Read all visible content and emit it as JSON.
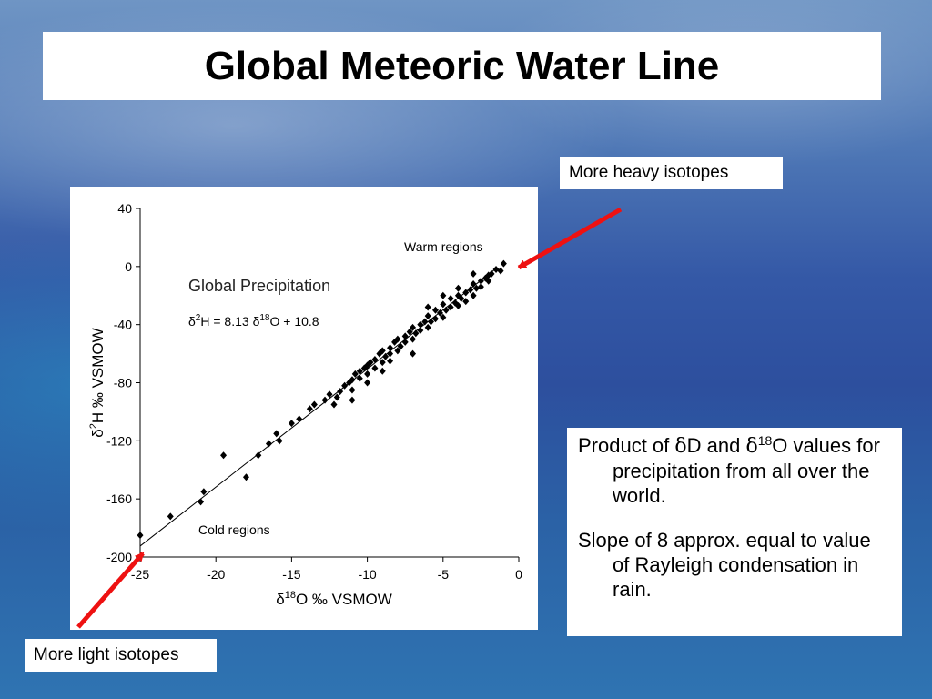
{
  "slide": {
    "title": "Global Meteoric Water Line"
  },
  "annotations": {
    "heavy_label": "More heavy isotopes",
    "light_label": "More light isotopes",
    "arrow_color": "#ee1111"
  },
  "info": {
    "p1_text_a": "Product of ",
    "p1_delta1": "δ",
    "p1_text_b": "D and ",
    "p1_delta2": "δ",
    "p1_sup": "18",
    "p1_text_c": "O values for precipitation from all over the world.",
    "p2": "Slope of 8 approx. equal to value of Rayleigh condensation in rain."
  },
  "chart_data": {
    "type": "scatter",
    "title": "Global Precipitation",
    "equation": "δ²H = 8.13 δ¹⁸O + 10.8",
    "equation_parts": {
      "lhs": "δ",
      "sup2": "2",
      "mid": "H = 8.13 δ",
      "sup18": "18",
      "rhs": "O + 10.8"
    },
    "annotations": [
      "Warm regions",
      "Cold regions"
    ],
    "xlabel": "δ18O ‰ VSMOW",
    "ylabel": "δ2H ‰ VSMOW",
    "xlabel_parts": {
      "pre": "δ",
      "sup": "18",
      "post": "O ‰ VSMOW"
    },
    "ylabel_parts": {
      "pre": "δ",
      "sup": "2",
      "post": "H ‰ VSMOW"
    },
    "xlim": [
      -25,
      0
    ],
    "ylim": [
      -200,
      40
    ],
    "xticks": [
      -25,
      -20,
      -15,
      -10,
      -5,
      0
    ],
    "yticks": [
      -200,
      -160,
      -120,
      -80,
      -40,
      0,
      40
    ],
    "xtick_labels": [
      "-25",
      "-20",
      "-15",
      "-10",
      "-5",
      "0"
    ],
    "ytick_labels": [
      "-200",
      "-160",
      "-120",
      "-80",
      "-40",
      "0",
      "40"
    ],
    "fit_line": {
      "slope": 8.13,
      "intercept": 10.8,
      "x_range": [
        -25,
        -1.5
      ]
    },
    "grid": false,
    "marker_color": "#000000",
    "points": [
      [
        -25,
        -185
      ],
      [
        -23,
        -172
      ],
      [
        -20.8,
        -155
      ],
      [
        -21,
        -162
      ],
      [
        -19.5,
        -130
      ],
      [
        -18,
        -145
      ],
      [
        -17.2,
        -130
      ],
      [
        -16.5,
        -122
      ],
      [
        -16,
        -115
      ],
      [
        -15.8,
        -120
      ],
      [
        -15,
        -108
      ],
      [
        -14.5,
        -105
      ],
      [
        -13.8,
        -98
      ],
      [
        -13.5,
        -95
      ],
      [
        -12.8,
        -92
      ],
      [
        -12.5,
        -88
      ],
      [
        -12.2,
        -95
      ],
      [
        -12,
        -90
      ],
      [
        -11.8,
        -86
      ],
      [
        -11.5,
        -82
      ],
      [
        -11.2,
        -80
      ],
      [
        -11,
        -85
      ],
      [
        -11,
        -78
      ],
      [
        -10.8,
        -74
      ],
      [
        -10.5,
        -77
      ],
      [
        -10.5,
        -72
      ],
      [
        -10.2,
        -70
      ],
      [
        -10,
        -68
      ],
      [
        -10,
        -74
      ],
      [
        -9.8,
        -66
      ],
      [
        -9.5,
        -70
      ],
      [
        -9.5,
        -64
      ],
      [
        -9.2,
        -60
      ],
      [
        -9,
        -66
      ],
      [
        -9,
        -58
      ],
      [
        -8.8,
        -62
      ],
      [
        -8.5,
        -56
      ],
      [
        -8.5,
        -60
      ],
      [
        -8.2,
        -52
      ],
      [
        -8,
        -58
      ],
      [
        -8,
        -50
      ],
      [
        -7.8,
        -55
      ],
      [
        -7.5,
        -48
      ],
      [
        -7.5,
        -52
      ],
      [
        -7.2,
        -45
      ],
      [
        -7,
        -50
      ],
      [
        -7,
        -42
      ],
      [
        -6.8,
        -46
      ],
      [
        -6.5,
        -40
      ],
      [
        -6.5,
        -44
      ],
      [
        -6.2,
        -38
      ],
      [
        -6,
        -42
      ],
      [
        -6,
        -34
      ],
      [
        -5.8,
        -38
      ],
      [
        -5.5,
        -36
      ],
      [
        -5.5,
        -30
      ],
      [
        -5.2,
        -32
      ],
      [
        -5,
        -35
      ],
      [
        -5,
        -26
      ],
      [
        -4.8,
        -30
      ],
      [
        -4.5,
        -28
      ],
      [
        -4.5,
        -22
      ],
      [
        -4.2,
        -25
      ],
      [
        -4,
        -27
      ],
      [
        -4,
        -20
      ],
      [
        -3.8,
        -22
      ],
      [
        -3.5,
        -18
      ],
      [
        -3.5,
        -24
      ],
      [
        -3.2,
        -16
      ],
      [
        -3,
        -20
      ],
      [
        -3,
        -12
      ],
      [
        -2.8,
        -15
      ],
      [
        -2.5,
        -10
      ],
      [
        -2.5,
        -14
      ],
      [
        -2.2,
        -8
      ],
      [
        -2,
        -10
      ],
      [
        -2,
        -6
      ],
      [
        -1.8,
        -5
      ],
      [
        -1.5,
        -2
      ],
      [
        -1.2,
        -3
      ],
      [
        -1,
        2
      ],
      [
        -7,
        -60
      ],
      [
        -9,
        -72
      ],
      [
        -11,
        -92
      ],
      [
        -10,
        -80
      ],
      [
        -8.5,
        -65
      ],
      [
        -6,
        -28
      ],
      [
        -5,
        -20
      ],
      [
        -4,
        -15
      ],
      [
        -3,
        -5
      ]
    ]
  }
}
